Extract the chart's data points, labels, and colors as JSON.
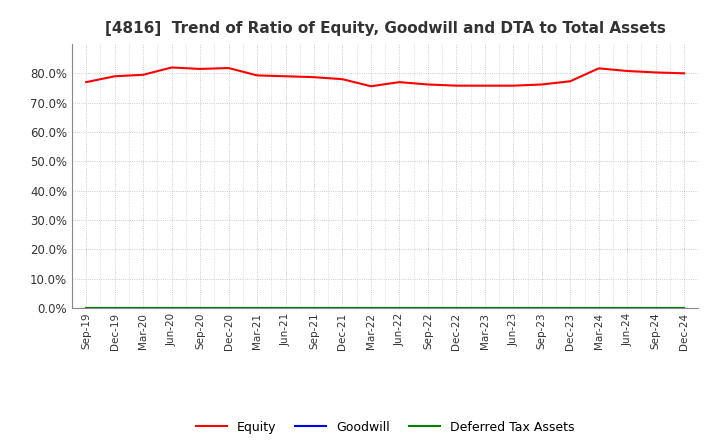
{
  "title": "[4816]  Trend of Ratio of Equity, Goodwill and DTA to Total Assets",
  "x_labels": [
    "Sep-19",
    "Dec-19",
    "Mar-20",
    "Jun-20",
    "Sep-20",
    "Dec-20",
    "Mar-21",
    "Jun-21",
    "Sep-21",
    "Dec-21",
    "Mar-22",
    "Jun-22",
    "Sep-22",
    "Dec-22",
    "Mar-23",
    "Jun-23",
    "Sep-23",
    "Dec-23",
    "Mar-24",
    "Jun-24",
    "Sep-24",
    "Dec-24"
  ],
  "equity": [
    0.77,
    0.79,
    0.795,
    0.82,
    0.815,
    0.818,
    0.793,
    0.79,
    0.787,
    0.78,
    0.756,
    0.77,
    0.762,
    0.758,
    0.758,
    0.758,
    0.762,
    0.773,
    0.817,
    0.808,
    0.803,
    0.8
  ],
  "goodwill": [
    0.0,
    0.0,
    0.0,
    0.0,
    0.0,
    0.0,
    0.0,
    0.0,
    0.0,
    0.0,
    0.0,
    0.0,
    0.0,
    0.0,
    0.0,
    0.0,
    0.0,
    0.0,
    0.0,
    0.0,
    0.0,
    0.0
  ],
  "dta": [
    0.0,
    0.0,
    0.0,
    0.0,
    0.0,
    0.0,
    0.0,
    0.0,
    0.0,
    0.0,
    0.0,
    0.0,
    0.0,
    0.0,
    0.0,
    0.0,
    0.0,
    0.0,
    0.0,
    0.0,
    0.0,
    0.0
  ],
  "equity_color": "#ff0000",
  "goodwill_color": "#0000ff",
  "dta_color": "#008000",
  "ylim": [
    0.0,
    0.9
  ],
  "yticks": [
    0.0,
    0.1,
    0.2,
    0.3,
    0.4,
    0.5,
    0.6,
    0.7,
    0.8
  ],
  "background_color": "#ffffff",
  "grid_color": "#bbbbbb",
  "title_fontsize": 11,
  "legend_labels": [
    "Equity",
    "Goodwill",
    "Deferred Tax Assets"
  ]
}
